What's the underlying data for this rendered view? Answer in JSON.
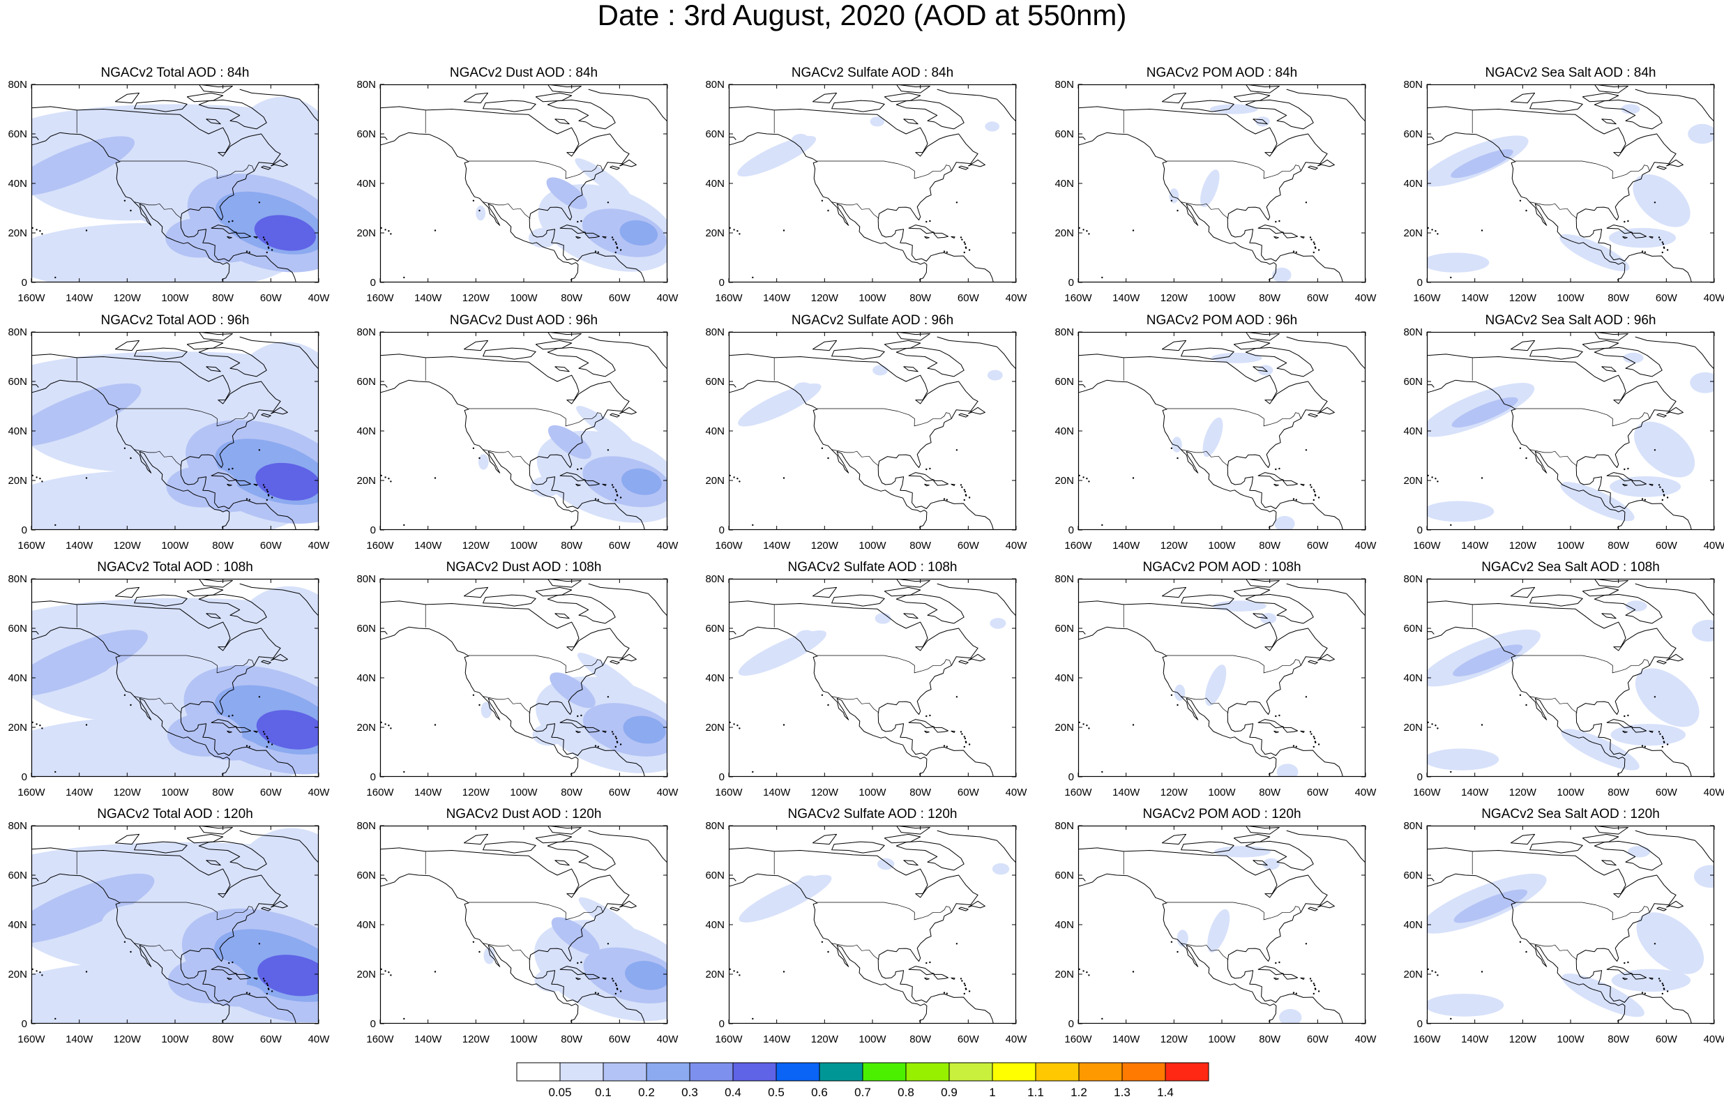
{
  "title": "Date : 3rd August, 2020 (AOD at 550nm)",
  "lat_ticks": [
    "0",
    "20N",
    "40N",
    "60N",
    "80N"
  ],
  "lon_ticks": [
    "160W",
    "140W",
    "120W",
    "100W",
    "80W",
    "60W",
    "40W"
  ],
  "panels": [
    [
      "NGACv2 Total AOD : 84h",
      "NGACv2 Dust AOD : 84h",
      "NGACv2 Sulfate AOD : 84h",
      "NGACv2 POM AOD : 84h",
      "NGACv2 Sea Salt AOD : 84h"
    ],
    [
      "NGACv2 Total AOD : 96h",
      "NGACv2 Dust AOD : 96h",
      "NGACv2 Sulfate AOD : 96h",
      "NGACv2 POM AOD : 96h",
      "NGACv2 Sea Salt AOD : 96h"
    ],
    [
      "NGACv2 Total AOD : 108h",
      "NGACv2 Dust AOD : 108h",
      "NGACv2 Sulfate AOD : 108h",
      "NGACv2 POM AOD : 108h",
      "NGACv2 Sea Salt AOD : 108h"
    ],
    [
      "NGACv2 Total AOD : 120h",
      "NGACv2 Dust AOD : 120h",
      "NGACv2 Sulfate AOD : 120h",
      "NGACv2 POM AOD : 120h",
      "NGACv2 Sea Salt  AOD : 120h"
    ]
  ],
  "colorbar": {
    "labels": [
      "0.05",
      "0.1",
      "0.2",
      "0.3",
      "0.4",
      "0.5",
      "0.6",
      "0.7",
      "0.8",
      "0.9",
      "1",
      "1.1",
      "1.2",
      "1.3",
      "1.4"
    ],
    "colors": [
      "#ffffff",
      "#d7e1fa",
      "#b4c3f5",
      "#8caaf0",
      "#7e90ee",
      "#5f63e6",
      "#0a64f5",
      "#009696",
      "#4bf000",
      "#96f000",
      "#c8f03c",
      "#ffff00",
      "#ffc800",
      "#ff9900",
      "#ff7a00",
      "#ff2814"
    ]
  },
  "colors": {
    "coast": "#000000",
    "aod_light": "#d7e1fa",
    "aod_mid": "#b4c3f5",
    "aod_high": "#8caaf0",
    "aod_peak": "#5f63e6"
  }
}
